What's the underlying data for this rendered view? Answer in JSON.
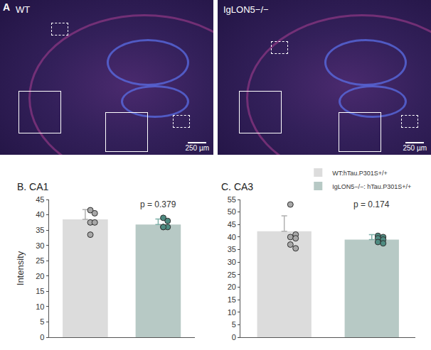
{
  "panel_a": {
    "label": "A",
    "images": [
      {
        "label": "WT",
        "scale_bar": "250 µm"
      },
      {
        "label": "IgLON5−/−",
        "scale_bar": "250 µm"
      }
    ]
  },
  "chart_data": [
    {
      "type": "bar",
      "title": "B. CA1",
      "y_label": "Intensity",
      "categories": [
        null,
        null
      ],
      "ylim": [
        0,
        45
      ],
      "yticks": [
        0,
        5,
        10,
        15,
        20,
        25,
        30,
        35,
        40,
        45
      ],
      "series": [
        {
          "color": "#dcdcdc",
          "values": [
            38.5,
            null
          ],
          "error": [
            3.2,
            null
          ],
          "points": [
            [
              41.5,
              40.5,
              37.5,
              37.5,
              33.5
            ],
            null
          ]
        },
        {
          "color": "#b7c9c5",
          "values": [
            null,
            36.8
          ],
          "error": [
            null,
            1.8
          ],
          "points": [
            null,
            [
              39,
              38,
              36,
              36,
              36
            ]
          ]
        }
      ],
      "annotations": [
        {
          "text": "p = 0.379",
          "category": 1
        }
      ]
    },
    {
      "type": "bar",
      "title": "C. CA3",
      "categories": [
        null,
        null
      ],
      "ylim": [
        0,
        55
      ],
      "yticks": [
        0,
        5,
        10,
        15,
        20,
        25,
        30,
        35,
        40,
        45,
        50,
        55
      ],
      "legend": "top right",
      "series": [
        {
          "name": "WT:hTau.P301S+/+",
          "color": "#dcdcdc",
          "values": [
            42.3,
            null
          ],
          "error": [
            6.2,
            null
          ],
          "points": [
            [
              53,
              41,
              40,
              39.5,
              37,
              35.5
            ],
            null
          ]
        },
        {
          "name": "IgLON5−/−: hTau.P301S+/+",
          "color": "#b7c9c5",
          "values": [
            null,
            39
          ],
          "error": [
            null,
            2
          ],
          "points": [
            null,
            [
              40.5,
              40,
              39.5,
              39,
              38,
              37.5
            ]
          ]
        }
      ],
      "annotations": [
        {
          "text": "p = 0.174",
          "category": 1
        }
      ]
    }
  ]
}
